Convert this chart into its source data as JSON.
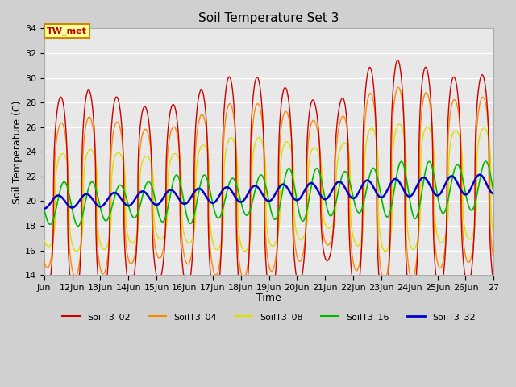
{
  "title": "Soil Temperature Set 3",
  "xlabel": "Time",
  "ylabel": "Soil Temperature (C)",
  "ylim": [
    14,
    34
  ],
  "xlim_days": [
    11,
    27
  ],
  "annotation_text": "TW_met",
  "annotation_bg": "#FFFF99",
  "annotation_border": "#CC8800",
  "annotation_color": "#BB0000",
  "series_colors": {
    "SoilT3_02": "#CC0000",
    "SoilT3_04": "#FF8800",
    "SoilT3_08": "#DDDD00",
    "SoilT3_16": "#00BB00",
    "SoilT3_32": "#0000CC"
  },
  "plot_bg": "#E8E8E8",
  "fig_bg": "#D0D0D0",
  "grid_color": "#FFFFFF",
  "tick_labels": [
    "Jun",
    "12Jun",
    "13Jun",
    "14Jun",
    "15Jun",
    "16Jun",
    "17Jun",
    "18Jun",
    "19Jun",
    "20Jun",
    "21Jun",
    "22Jun",
    "23Jun",
    "24Jun",
    "25Jun",
    "26Jun",
    "27"
  ],
  "tick_positions": [
    11,
    12,
    13,
    14,
    15,
    16,
    17,
    18,
    19,
    20,
    21,
    22,
    23,
    24,
    25,
    26,
    27
  ],
  "yticks": [
    14,
    16,
    18,
    20,
    22,
    24,
    26,
    28,
    30,
    32,
    34
  ]
}
